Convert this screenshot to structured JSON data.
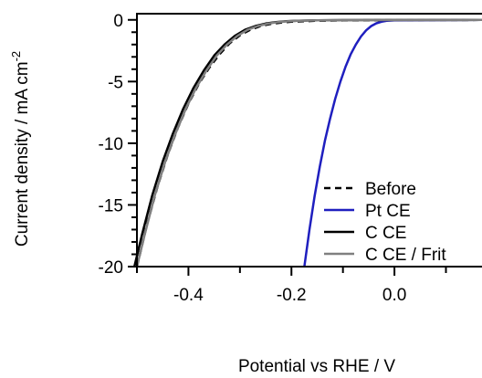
{
  "chart_data": {
    "type": "line",
    "xlabel": "Potential vs RHE / V",
    "ylabel": "Current density / mA cm",
    "ylabel_superscript": "-2",
    "xlim": [
      -0.5,
      0.17
    ],
    "ylim": [
      -20,
      0.5
    ],
    "x_ticks": [
      -0.4,
      -0.2,
      0.0
    ],
    "x_tick_labels": [
      "-0.4",
      "-0.2",
      "0.0"
    ],
    "y_ticks": [
      0,
      -5,
      -10,
      -15,
      -20
    ],
    "y_tick_labels": [
      "0",
      "-5",
      "-10",
      "-15",
      "-20"
    ],
    "grid": false,
    "legend_position": "bottom-right",
    "series": [
      {
        "name": "Before",
        "color": "#000000",
        "dash": "dashed",
        "x": [
          -0.5,
          -0.48,
          -0.46,
          -0.44,
          -0.42,
          -0.4,
          -0.38,
          -0.36,
          -0.34,
          -0.32,
          -0.3,
          -0.28,
          -0.26,
          -0.24,
          -0.22,
          -0.2,
          -0.15,
          -0.1,
          0.0,
          0.17
        ],
        "y": [
          -20.0,
          -16.5,
          -13.5,
          -10.9,
          -8.7,
          -6.8,
          -5.2,
          -3.9,
          -2.8,
          -1.9,
          -1.25,
          -0.8,
          -0.5,
          -0.33,
          -0.22,
          -0.15,
          -0.07,
          -0.04,
          -0.02,
          0.0
        ]
      },
      {
        "name": "Pt CE",
        "color": "#1f1fbf",
        "dash": "solid",
        "x": [
          -0.175,
          -0.165,
          -0.155,
          -0.145,
          -0.135,
          -0.125,
          -0.115,
          -0.105,
          -0.095,
          -0.085,
          -0.075,
          -0.065,
          -0.055,
          -0.045,
          -0.035,
          -0.025,
          -0.015,
          0.0,
          0.17
        ],
        "y": [
          -20.0,
          -17.0,
          -14.3,
          -11.9,
          -9.8,
          -8.0,
          -6.4,
          -5.0,
          -3.8,
          -2.8,
          -2.0,
          -1.35,
          -0.85,
          -0.5,
          -0.28,
          -0.15,
          -0.08,
          -0.03,
          0.0
        ]
      },
      {
        "name": "C CE",
        "color": "#000000",
        "dash": "solid",
        "x": [
          -0.505,
          -0.49,
          -0.47,
          -0.45,
          -0.43,
          -0.41,
          -0.39,
          -0.37,
          -0.35,
          -0.33,
          -0.31,
          -0.29,
          -0.27,
          -0.25,
          -0.23,
          -0.21,
          -0.19,
          -0.15,
          -0.1,
          0.0,
          0.17
        ],
        "y": [
          -20.0,
          -17.4,
          -14.2,
          -11.5,
          -9.2,
          -7.2,
          -5.5,
          -4.1,
          -2.9,
          -2.0,
          -1.3,
          -0.8,
          -0.5,
          -0.3,
          -0.18,
          -0.11,
          -0.07,
          -0.04,
          -0.02,
          -0.01,
          0.0
        ]
      },
      {
        "name": "C CE / Frit",
        "color": "#808080",
        "dash": "solid",
        "x": [
          -0.5,
          -0.485,
          -0.465,
          -0.445,
          -0.425,
          -0.405,
          -0.385,
          -0.365,
          -0.345,
          -0.325,
          -0.305,
          -0.285,
          -0.265,
          -0.245,
          -0.225,
          -0.205,
          -0.185,
          -0.15,
          -0.1,
          0.0,
          0.17
        ],
        "y": [
          -20.0,
          -17.4,
          -14.2,
          -11.5,
          -9.2,
          -7.2,
          -5.5,
          -4.1,
          -2.9,
          -2.0,
          -1.3,
          -0.8,
          -0.5,
          -0.3,
          -0.18,
          -0.11,
          -0.07,
          -0.04,
          -0.02,
          -0.01,
          0.0
        ]
      }
    ]
  }
}
